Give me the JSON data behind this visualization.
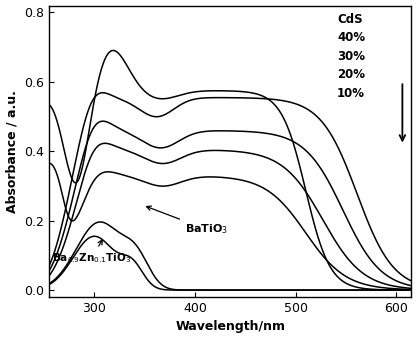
{
  "xlabel": "Wavelength/nm",
  "ylabel": "Absorbance / a.u.",
  "xlim": [
    255,
    615
  ],
  "ylim": [
    -0.02,
    0.82
  ],
  "xticks": [
    300,
    400,
    500,
    600
  ],
  "yticks": [
    0.0,
    0.2,
    0.4,
    0.6,
    0.8
  ],
  "line_color": "#000000",
  "background_color": "#ffffff",
  "figsize": [
    4.17,
    3.39
  ],
  "dpi": 100
}
